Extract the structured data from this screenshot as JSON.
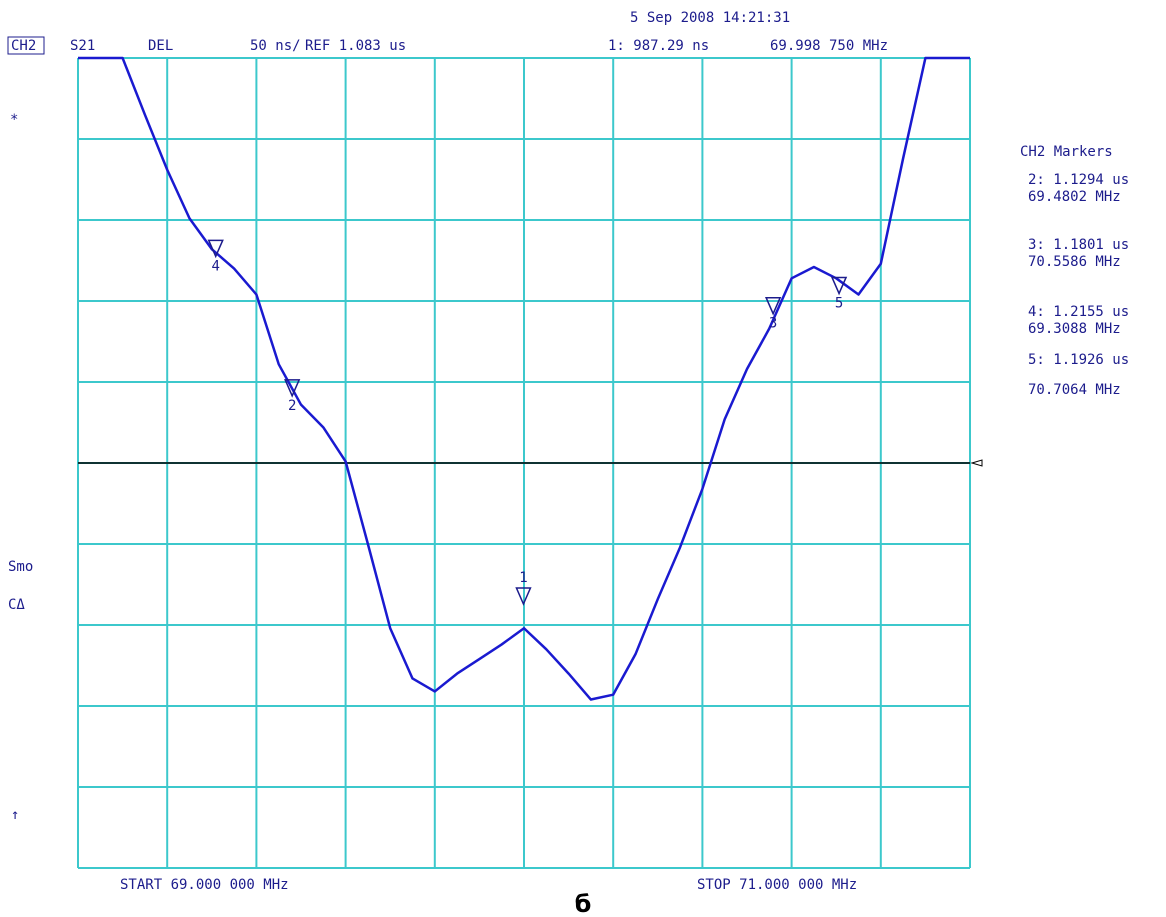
{
  "chart_data": {
    "type": "line",
    "timestamp": "5 Sep 2008  14:21:31",
    "channel": "CH2",
    "parameter": "S21",
    "format": "DEL",
    "scale_label": "50 ns/",
    "ref_label": "REF 1.083 us",
    "ref": 1083,
    "star": "*",
    "smoothing": "Smo",
    "coupling": "CΔ",
    "arrow": "↑",
    "start_label": "START  69.000 000 MHz",
    "stop_label": "STOP  71.000 000 MHz",
    "caption": "б",
    "markers_title": "CH2 Markers",
    "xlim": [
      69,
      71
    ],
    "ylim": [
      833,
      1333
    ],
    "x": [
      69.0,
      69.05,
      69.1,
      69.15,
      69.2,
      69.25,
      69.3,
      69.35,
      69.4,
      69.45,
      69.5,
      69.55,
      69.6,
      69.65,
      69.7,
      69.75,
      69.8,
      69.85,
      69.9,
      69.95,
      70.0,
      70.05,
      70.1,
      70.15,
      70.2,
      70.25,
      70.3,
      70.35,
      70.4,
      70.45,
      70.5,
      70.55,
      70.6,
      70.65,
      70.7,
      70.75,
      70.8,
      70.85,
      70.9,
      70.95,
      71.0
    ],
    "series": [
      {
        "color": "#1a1ad0",
        "values": [
          1333,
          1333,
          1333,
          1298,
          1264,
          1234,
          1215,
          1203,
          1187,
          1144,
          1119,
          1105,
          1084,
          1033,
          981,
          950,
          942,
          953,
          962,
          971,
          981,
          968,
          953,
          937,
          940,
          965,
          999,
          1031,
          1067,
          1110,
          1141,
          1166,
          1197,
          1204,
          1197,
          1187,
          1206,
          1271,
          1333,
          1333,
          1333
        ]
      }
    ],
    "markers": [
      {
        "name": "1",
        "delay": 987.29,
        "delay_label": "1: 987.29 ns",
        "freq": 69.99875,
        "freq_label": "69.998 750 MHz"
      },
      {
        "name": "2",
        "delay": 1129.4,
        "delay_label": "2: 1.1294 us",
        "freq": 69.4802,
        "freq_label": "69.4802 MHz"
      },
      {
        "name": "3",
        "delay": 1180.1,
        "delay_label": "3: 1.1801 us",
        "freq": 70.5586,
        "freq_label": "70.5586 MHz"
      },
      {
        "name": "4",
        "delay": 1215.5,
        "delay_label": "4: 1.2155 us",
        "freq": 69.3088,
        "freq_label": "69.3088 MHz"
      },
      {
        "name": "5",
        "delay": 1192.6,
        "delay_label": "5: 1.1926 us",
        "freq": 70.7064,
        "freq_label": "70.7064 MHz"
      }
    ]
  }
}
